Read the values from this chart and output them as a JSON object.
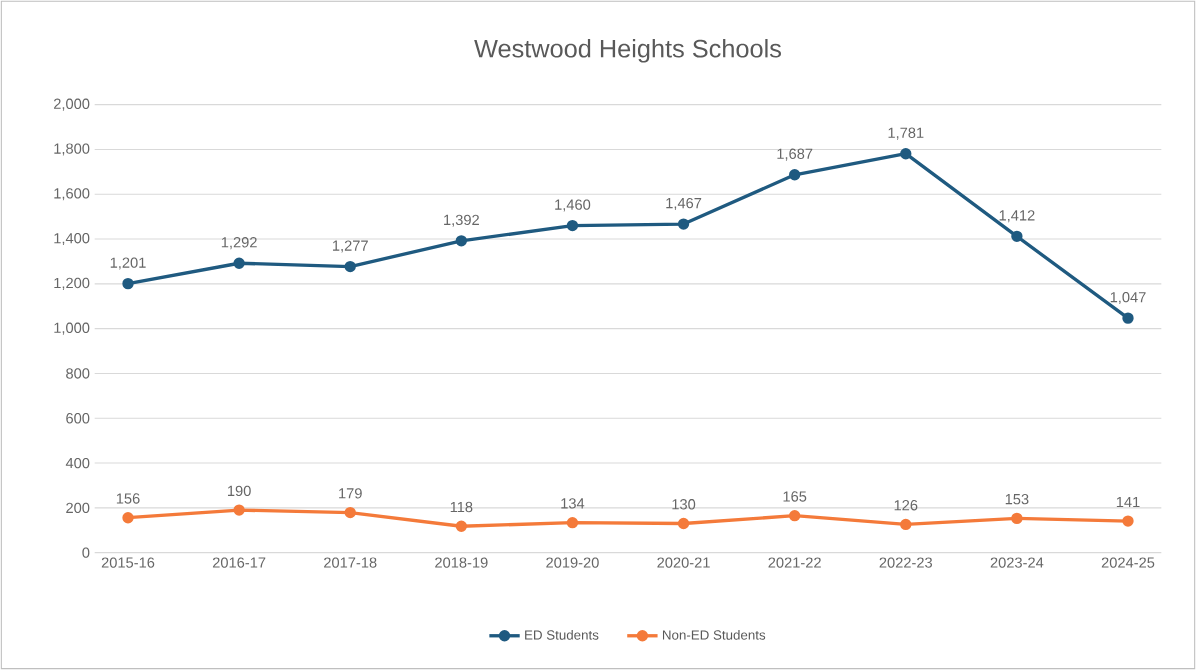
{
  "chart_data": {
    "type": "line",
    "title": "Westwood Heights Schools",
    "categories": [
      "2015-16",
      "2016-17",
      "2017-18",
      "2018-19",
      "2019-20",
      "2020-21",
      "2021-22",
      "2022-23",
      "2023-24",
      "2024-25"
    ],
    "series": [
      {
        "name": "ED Students",
        "color": "#1f5a80",
        "values": [
          1201,
          1292,
          1277,
          1392,
          1460,
          1467,
          1687,
          1781,
          1412,
          1047
        ],
        "value_labels": [
          "1,201",
          "1,292",
          "1,277",
          "1,392",
          "1,460",
          "1,467",
          "1,687",
          "1,781",
          "1,412",
          "1,047"
        ]
      },
      {
        "name": "Non-ED Students",
        "color": "#f47a3a",
        "values": [
          156,
          190,
          179,
          118,
          134,
          130,
          165,
          126,
          153,
          141
        ]
      }
    ],
    "ylim": [
      0,
      2000
    ],
    "yticks": [
      0,
      200,
      400,
      600,
      800,
      {
        "value": 1000,
        "label": "1,000"
      },
      {
        "value": 1200,
        "label": "1,200"
      },
      {
        "value": 1400,
        "label": "1,400"
      },
      {
        "value": 1600,
        "label": "1,600"
      },
      {
        "value": 1800,
        "label": "1,800"
      },
      {
        "value": 2000,
        "label": "2,000"
      }
    ],
    "grid": "y",
    "legend": "bottom",
    "marker": "circle",
    "line_style": "solid",
    "data_labels": true
  }
}
